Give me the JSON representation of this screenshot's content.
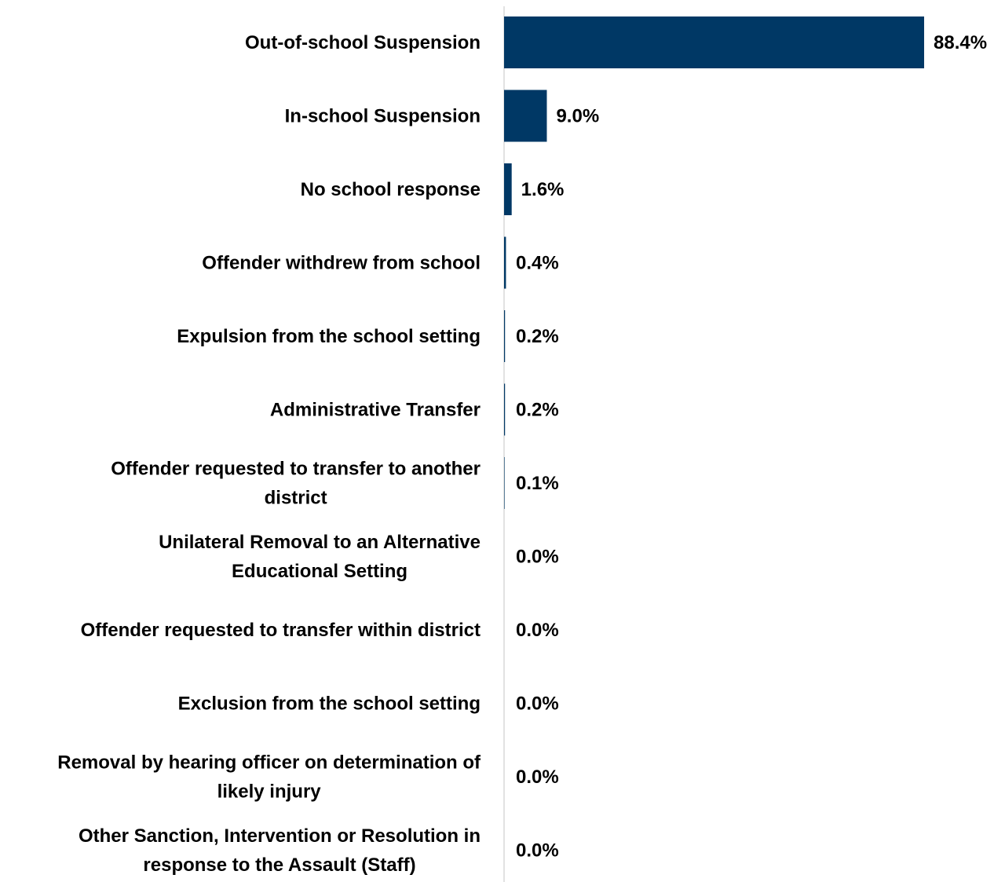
{
  "chart_data": {
    "type": "bar",
    "orientation": "horizontal",
    "title": "",
    "xlabel": "",
    "ylabel": "",
    "categories": [
      "Out-of-school Suspension",
      "In-school Suspension",
      "No school response",
      "Offender withdrew from school",
      "Expulsion from the school setting",
      "Administrative Transfer",
      "Offender requested to transfer to another district",
      "Unilateral Removal to an Alternative Educational Setting",
      "Offender requested to transfer within district",
      "Exclusion from the school setting",
      "Removal by hearing officer on determination of likely injury",
      "Other Sanction, Intervention or Resolution in response to the Assault (Staff)"
    ],
    "category_lines": [
      [
        "Out-of-school Suspension"
      ],
      [
        "In-school Suspension"
      ],
      [
        "No school response"
      ],
      [
        "Offender withdrew from school"
      ],
      [
        "Expulsion from the school setting"
      ],
      [
        "Administrative Transfer"
      ],
      [
        "Offender requested to transfer to another",
        "district"
      ],
      [
        "Unilateral Removal to an Alternative",
        "Educational Setting"
      ],
      [
        "Offender requested to transfer within district"
      ],
      [
        "Exclusion from the school setting"
      ],
      [
        "Removal by hearing officer on determination of",
        "likely injury"
      ],
      [
        "Other Sanction, Intervention or Resolution in",
        "response to the Assault (Staff)"
      ]
    ],
    "values": [
      88.4,
      9.0,
      1.6,
      0.4,
      0.2,
      0.2,
      0.1,
      0.0,
      0.0,
      0.0,
      0.0,
      0.0
    ],
    "value_labels": [
      "88.4%",
      "9.0%",
      "1.6%",
      "0.4%",
      "0.2%",
      "0.2%",
      "0.1%",
      "0.0%",
      "0.0%",
      "0.0%",
      "0.0%",
      "0.0%"
    ],
    "xlim": [
      0,
      88.4
    ],
    "grid": false,
    "legend": "none",
    "bar_color": "#003865",
    "axis_color": "#d9d9d9"
  }
}
